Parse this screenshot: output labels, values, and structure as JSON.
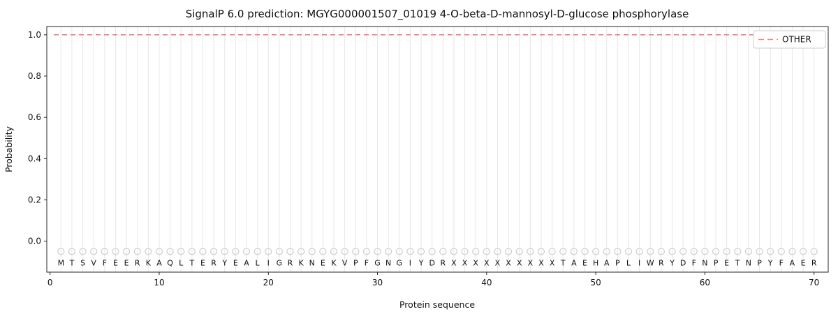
{
  "chart_data": {
    "type": "line",
    "title": "SignalP 6.0 prediction: MGYG000001507_01019 4-O-beta-D-mannosyl-D-glucose phosphorylase",
    "xlabel": "Protein sequence",
    "ylabel": "Probability",
    "xlim": [
      -0.3,
      71.3
    ],
    "ylim": [
      -0.15,
      1.04
    ],
    "x_ticks": [
      0,
      10,
      20,
      30,
      40,
      50,
      60,
      70
    ],
    "y_ticks": [
      0.0,
      0.2,
      0.4,
      0.6,
      0.8,
      1.0
    ],
    "grid": "vertical-line-per-residue",
    "legend": {
      "position": "upper right",
      "entries": [
        {
          "label": "OTHER",
          "color": "#f08080",
          "dash": true
        }
      ]
    },
    "series": [
      {
        "name": "OTHER",
        "style": "dashed",
        "color": "#f08080",
        "x_start": 1,
        "x_end": 70,
        "n_points": 70,
        "y_constant": 1.0
      }
    ],
    "sequence": {
      "marker": "open-circle",
      "marker_y": -0.05,
      "letters": [
        "M",
        "T",
        "S",
        "V",
        "F",
        "E",
        "E",
        "R",
        "K",
        "A",
        "Q",
        "L",
        "T",
        "E",
        "R",
        "Y",
        "E",
        "A",
        "L",
        "I",
        "G",
        "R",
        "K",
        "N",
        "E",
        "K",
        "V",
        "P",
        "F",
        "G",
        "N",
        "G",
        "I",
        "Y",
        "D",
        "R",
        "X",
        "X",
        "X",
        "X",
        "X",
        "X",
        "X",
        "X",
        "X",
        "X",
        "T",
        "A",
        "E",
        "H",
        "A",
        "P",
        "L",
        "I",
        "W",
        "R",
        "Y",
        "D",
        "F",
        "N",
        "P",
        "E",
        "T",
        "N",
        "P",
        "Y",
        "F",
        "A",
        "E",
        "R"
      ]
    },
    "colors": {
      "grid": "#e7e7e7",
      "frame": "#262626",
      "tick": "#262626",
      "marker_stroke": "#cccccc",
      "letter": "#1a1a1a",
      "legend_border": "#cccccc",
      "legend_bg": "#ffffff"
    }
  }
}
